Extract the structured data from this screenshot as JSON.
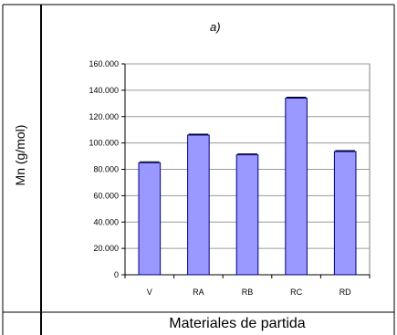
{
  "chart_data": {
    "type": "bar",
    "title": "a)",
    "ylabel": "Mn (g/mol)",
    "xlabel": "Materiales de partida",
    "categories": [
      "V",
      "RA",
      "RB",
      "RC",
      "RD"
    ],
    "values": [
      85000,
      106000,
      91000,
      134000,
      93500
    ],
    "ylim": [
      0,
      160000
    ],
    "yticks": [
      0,
      20000,
      40000,
      60000,
      80000,
      100000,
      120000,
      140000,
      160000
    ],
    "ytick_labels": [
      "0",
      "20.000",
      "40.000",
      "60.000",
      "80.000",
      "100.000",
      "120.000",
      "140.000",
      "160.000"
    ],
    "grid": true,
    "error_bars": true,
    "bar_color": "#9999ff",
    "bar_edge_color": "#000080"
  }
}
